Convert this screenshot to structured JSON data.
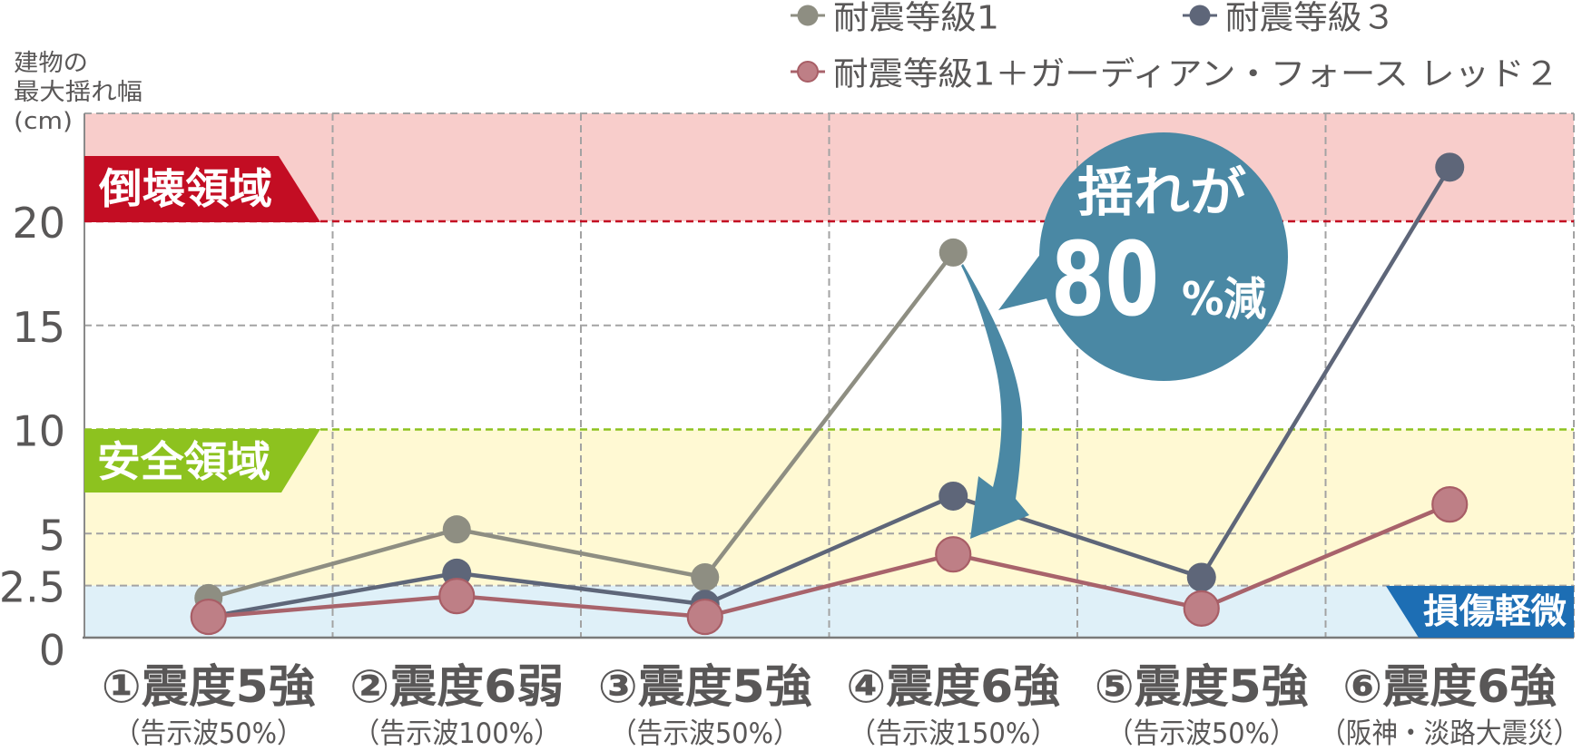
{
  "chart_data": {
    "type": "line",
    "title": "",
    "xlabel": "",
    "ylabel": "建物の最大揺れ幅(cm)",
    "ylabel_lines": [
      "建物の",
      "最大揺れ幅",
      "(cm)"
    ],
    "ylim": [
      0,
      25
    ],
    "yticks": [
      0,
      2.5,
      5,
      10,
      15,
      20
    ],
    "ytick_labels": [
      "0",
      "2.5",
      "5",
      "10",
      "15",
      "20"
    ],
    "grid": true,
    "legend_position": "top-right",
    "categories": [
      "①震度5強（告示波50%）",
      "②震度6弱（告示波100%）",
      "③震度5強（告示波50%）",
      "④震度6強（告示波150%）",
      "⑤震度5強（告示波50%）",
      "⑥震度6強（阪神・淡路大震災）"
    ],
    "category_lines": [
      [
        "①震度5強",
        "（告示波50%）"
      ],
      [
        "②震度6弱",
        "（告示波100%）"
      ],
      [
        "③震度5強",
        "（告示波50%）"
      ],
      [
        "④震度6強",
        "（告示波150%）"
      ],
      [
        "⑤震度5強",
        "（告示波50%）"
      ],
      [
        "⑥震度6強",
        "（阪神・淡路大震災）"
      ]
    ],
    "series": [
      {
        "name": "耐震等級1",
        "color": "#8e8e82",
        "line_color": "#8e8e82",
        "marker_border": "#8e8e82",
        "values": [
          1.9,
          5.2,
          2.9,
          18.5,
          null,
          null
        ]
      },
      {
        "name": "耐震等級３",
        "color": "#5e6679",
        "line_color": "#5e6679",
        "marker_border": "#5e6679",
        "values": [
          1.0,
          3.1,
          1.6,
          6.8,
          2.9,
          22.6
        ]
      },
      {
        "name": "耐震等級1＋ガーディアン・フォース レッド２",
        "color": "#be7f86",
        "line_color": "#a8636b",
        "marker_border": "#a85e66",
        "values": [
          1.0,
          2.0,
          1.0,
          4.0,
          1.4,
          6.4
        ]
      }
    ],
    "zones": [
      {
        "label": "倒壊領域",
        "from": 20,
        "to": 25,
        "bg": "#f8cdcb",
        "label_bg": "#c30d23",
        "edge_value": 20,
        "edge_color": "#c30d23"
      },
      {
        "label": "安全領域",
        "from": 2.5,
        "to": 10,
        "bg": "#fff9d3",
        "label_bg": "#8dc21f",
        "edge_value": 10,
        "edge_color": "#8dc21f"
      },
      {
        "label": "損傷軽微",
        "from": 0,
        "to": 2.5,
        "bg": "#dff0f8",
        "label_bg": "#1d6eb4"
      }
    ],
    "annotations": [
      {
        "type": "callout",
        "text": "揺れが80%減",
        "line1": "揺れが",
        "number": "80",
        "unit": "%減",
        "color": "#4a88a4"
      }
    ]
  }
}
